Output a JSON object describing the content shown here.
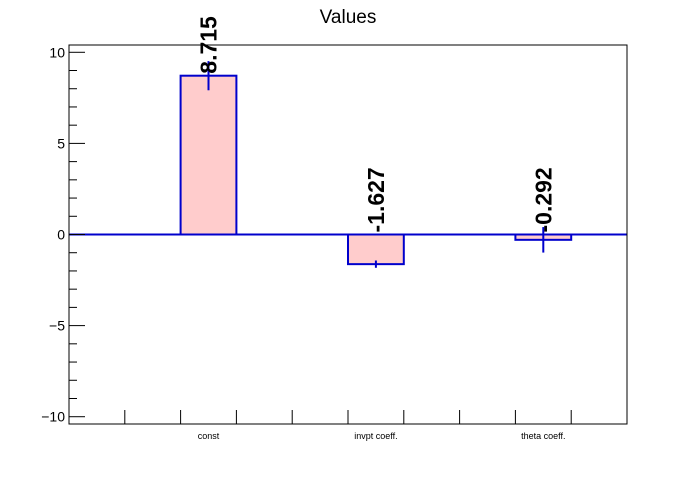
{
  "chart_data": {
    "type": "bar",
    "title": "Values",
    "categories": [
      "const",
      "invpt coeff.",
      "theta coeff."
    ],
    "values": [
      8.715,
      -1.627,
      -0.292
    ],
    "errors": [
      0.8,
      0.2,
      0.7
    ],
    "data_labels": [
      "8.715",
      "-1.627",
      "-0.292"
    ],
    "ylim": [
      -10.4,
      10.4
    ],
    "xlim": [
      0,
      10
    ],
    "bar_spans": [
      [
        2,
        3
      ],
      [
        5,
        6
      ],
      [
        8,
        9
      ]
    ],
    "ytick_values": [
      -10,
      -5,
      0,
      5,
      10
    ],
    "ytick_labels": [
      "−10",
      "−5",
      "0",
      "5",
      "10"
    ],
    "xlabel": "",
    "ylabel": "",
    "grid": false,
    "legend": "none",
    "colors": {
      "bar_fill": "#ffcccc",
      "bar_outline": "#0000cc",
      "error_bar": "#0000cc",
      "zero_line": "#0000cc",
      "axis": "#000000"
    }
  }
}
